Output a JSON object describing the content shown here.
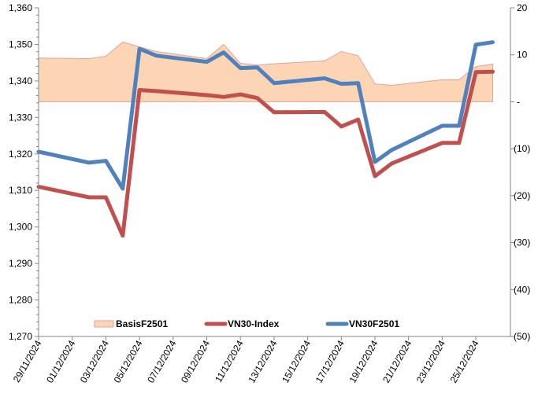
{
  "chart_data": {
    "type": "line",
    "title": "",
    "xlabel": "",
    "ylabel": "",
    "y2label": "",
    "x_tick_labels": [
      "29/11/2024",
      "01/12/2024",
      "03/12/2024",
      "05/12/2024",
      "07/12/2024",
      "09/12/2024",
      "11/12/2024",
      "13/12/2024",
      "15/12/2024",
      "17/12/2024",
      "19/12/2024",
      "21/12/2024",
      "23/12/2024",
      "25/12/2024"
    ],
    "x_range": [
      "29/11/2024",
      "27/12/2024"
    ],
    "x": [
      "29/11/2024",
      "02/12/2024",
      "03/12/2024",
      "04/12/2024",
      "05/12/2024",
      "06/12/2024",
      "09/12/2024",
      "10/12/2024",
      "11/12/2024",
      "12/12/2024",
      "13/12/2024",
      "16/12/2024",
      "17/12/2024",
      "18/12/2024",
      "19/12/2024",
      "20/12/2024",
      "23/12/2024",
      "24/12/2024",
      "25/12/2024",
      "26/12/2024"
    ],
    "y_left": {
      "range": [
        1270,
        1360
      ],
      "tick_labels": [
        "1,270",
        "1,280",
        "1,290",
        "1,300",
        "1,310",
        "1,320",
        "1,330",
        "1,340",
        "1,350",
        "1,360"
      ],
      "tick_values": [
        1270,
        1280,
        1290,
        1300,
        1310,
        1320,
        1330,
        1340,
        1350,
        1360
      ]
    },
    "y_right": {
      "range": [
        -50,
        20
      ],
      "tick_labels": [
        "(50)",
        "(40)",
        "(30)",
        "(20)",
        "(10)",
        "-",
        "10",
        "20"
      ],
      "tick_values": [
        -50,
        -40,
        -30,
        -20,
        -10,
        0,
        10,
        20
      ]
    },
    "series": [
      {
        "name": "BasisF2501",
        "type": "area",
        "axis": "right",
        "color": "#FCD5B5",
        "stroke": "#E6A19A",
        "values": [
          9.3,
          9.2,
          9.7,
          12.7,
          11.7,
          10.7,
          9.2,
          12.2,
          8.2,
          7.8,
          8.1,
          8.7,
          10.7,
          9.8,
          3.8,
          3.5,
          4.7,
          4.7,
          7.5,
          8.0
        ]
      },
      {
        "name": "VN30-Index",
        "type": "line",
        "axis": "left",
        "color": "#C0504D",
        "values": [
          1311.0,
          1308.1,
          1308.1,
          1297.6,
          1337.5,
          1337.2,
          1336.1,
          1335.6,
          1336.3,
          1335.3,
          1331.4,
          1331.5,
          1327.5,
          1329.4,
          1313.9,
          1317.4,
          1323.0,
          1323.0,
          1342.4,
          1342.5
        ]
      },
      {
        "name": "VN30F2501",
        "type": "line",
        "axis": "left",
        "color": "#4F81BD",
        "values": [
          1320.6,
          1317.6,
          1318.1,
          1310.5,
          1348.8,
          1346.9,
          1345.2,
          1347.8,
          1343.5,
          1343.7,
          1339.4,
          1340.7,
          1339.2,
          1339.4,
          1317.8,
          1321.1,
          1327.7,
          1327.7,
          1349.9,
          1350.6
        ]
      }
    ],
    "legend": {
      "placement": "bottom-inside",
      "entries": [
        "BasisF2501",
        "VN30-Index",
        "VN30F2501"
      ]
    },
    "grid": false
  }
}
